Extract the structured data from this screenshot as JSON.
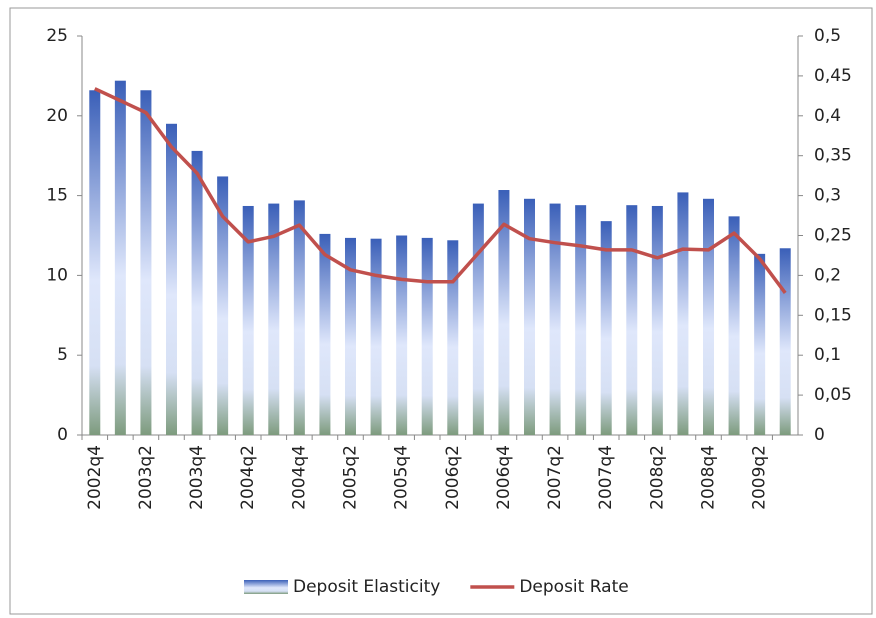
{
  "chart_data": {
    "type": "bar-line",
    "categories": [
      "2002q4",
      null,
      "2003q2",
      null,
      "2003q4",
      null,
      "2004q2",
      null,
      "2004q4",
      null,
      "2005q2",
      null,
      "2005q4",
      null,
      "2006q2",
      null,
      "2006q4",
      null,
      "2007q2",
      null,
      "2007q4",
      null,
      "2008q2",
      null,
      "2008q4",
      null,
      "2009q2",
      null
    ],
    "series": [
      {
        "name": "Deposit Elasticity",
        "type": "bar",
        "color": "#3a5fb8",
        "values": [
          21.6,
          22.2,
          21.6,
          19.5,
          17.8,
          16.2,
          14.35,
          14.5,
          14.7,
          12.6,
          12.35,
          12.3,
          12.5,
          12.35,
          12.2,
          14.5,
          15.35,
          14.8,
          14.5,
          14.4,
          13.4,
          14.4,
          14.35,
          15.2,
          14.8,
          13.7,
          11.35,
          11.7
        ]
      },
      {
        "name": "Deposit Rate",
        "type": "line",
        "axis": "y2",
        "color": "#c0504d",
        "values": [
          0.434,
          0.419,
          0.404,
          0.361,
          0.328,
          0.274,
          0.242,
          0.249,
          0.263,
          0.226,
          0.207,
          0.2,
          0.195,
          0.192,
          0.192,
          0.228,
          0.264,
          0.246,
          0.241,
          0.237,
          0.232,
          0.232,
          0.222,
          0.233,
          0.232,
          0.253,
          0.221,
          0.178
        ]
      }
    ],
    "ylim": [
      0,
      25
    ],
    "yticks": [
      0,
      5,
      10,
      15,
      20,
      25
    ],
    "y2lim": [
      0,
      0.5
    ],
    "y2ticks": [
      0,
      {
        "value": 0.05,
        "label": "0,05"
      },
      {
        "value": 0.1,
        "label": "0,1"
      },
      {
        "value": 0.15,
        "label": "0,15"
      },
      {
        "value": 0.2,
        "label": "0,2"
      },
      {
        "value": 0.25,
        "label": "0,25"
      },
      {
        "value": 0.3,
        "label": "0,3"
      },
      {
        "value": 0.35,
        "label": "0,35"
      },
      {
        "value": 0.4,
        "label": "0,4"
      },
      {
        "value": 0.45,
        "label": "0,45"
      },
      {
        "value": 0.5,
        "label": "0,5"
      }
    ],
    "grid": false,
    "legend": "bottom"
  }
}
